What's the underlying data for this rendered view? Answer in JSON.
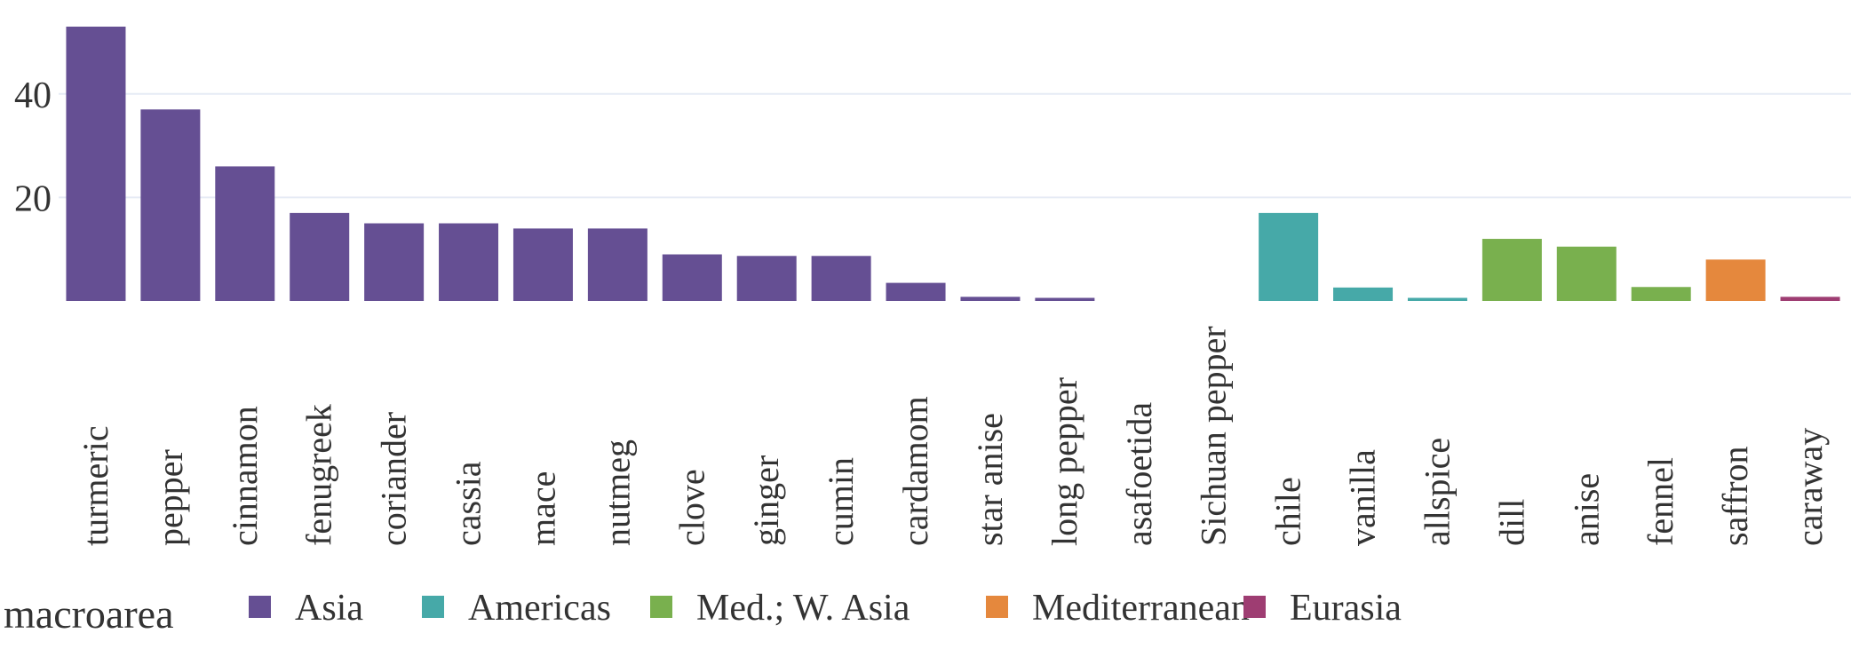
{
  "chart_data": {
    "type": "bar",
    "title": "",
    "xlabel": "",
    "ylabel": "",
    "ylim": [
      0,
      53
    ],
    "yticks": [
      20,
      40
    ],
    "grid": true,
    "legend": {
      "title": "macroarea",
      "position": "bottom",
      "entries": [
        {
          "name": "Asia",
          "color": "#654f93"
        },
        {
          "name": "Americas",
          "color": "#46a9a8"
        },
        {
          "name": "Med.; W. Asia",
          "color": "#79b04e"
        },
        {
          "name": "Mediterranean",
          "color": "#e5883d"
        },
        {
          "name": "Eurasia",
          "color": "#9e3d72"
        }
      ]
    },
    "categories": [
      "turmeric",
      "pepper",
      "cinnamon",
      "fenugreek",
      "coriander",
      "cassia",
      "mace",
      "nutmeg",
      "clove",
      "ginger",
      "cumin",
      "cardamom",
      "star anise",
      "long pepper",
      "asafoetida",
      "Sichuan pepper",
      "chile",
      "vanilla",
      "allspice",
      "dill",
      "anise",
      "fennel",
      "saffron",
      "caraway"
    ],
    "values": [
      53,
      37,
      26,
      17,
      15,
      15,
      14,
      14,
      9,
      8.7,
      8.7,
      3.5,
      0.8,
      0.6,
      0,
      0,
      17,
      2.6,
      0.6,
      12,
      10.5,
      2.7,
      8,
      0.8
    ],
    "groups": [
      "Asia",
      "Asia",
      "Asia",
      "Asia",
      "Asia",
      "Asia",
      "Asia",
      "Asia",
      "Asia",
      "Asia",
      "Asia",
      "Asia",
      "Asia",
      "Asia",
      "Asia",
      "Asia",
      "Americas",
      "Americas",
      "Americas",
      "Med.; W. Asia",
      "Med.; W. Asia",
      "Med.; W. Asia",
      "Mediterranean",
      "Eurasia"
    ]
  }
}
